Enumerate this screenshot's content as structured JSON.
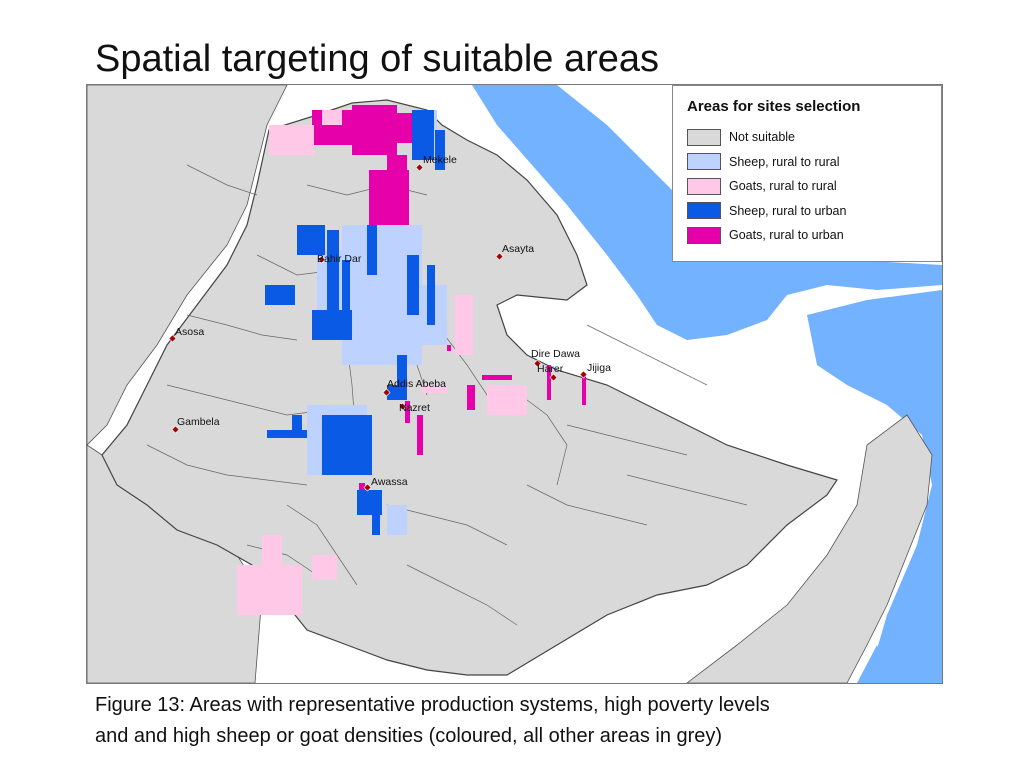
{
  "slide": {
    "title": "Spatial targeting of suitable areas",
    "caption_line1": "Figure  13: Areas with representative production systems, high poverty levels",
    "caption_line2": "and and high sheep or goat densities (coloured, all other areas in grey)"
  },
  "legend": {
    "title": "Areas for sites selection",
    "items": [
      {
        "label": "Not suitable",
        "color": "#d9d9d9"
      },
      {
        "label": "Sheep, rural to rural",
        "color": "#bed2ff"
      },
      {
        "label": "Goats, rural to rural",
        "color": "#ffc8e6"
      },
      {
        "label": "Sheep, rural to urban",
        "color": "#0a5ae6"
      },
      {
        "label": "Goats, rural to urban",
        "color": "#e600a9"
      }
    ]
  },
  "cities": [
    "Mekele",
    "Asayta",
    "Bahir Dar",
    "Asosa",
    "Dire Dawa",
    "Harer",
    "Jijiga",
    "Addis Abeba",
    "Nazret",
    "Gambela",
    "Awassa"
  ],
  "colors": {
    "water": "#73b2ff",
    "country_fill": "#d9d9d9",
    "boundary": "#555555",
    "city_marker": "#a80000"
  }
}
